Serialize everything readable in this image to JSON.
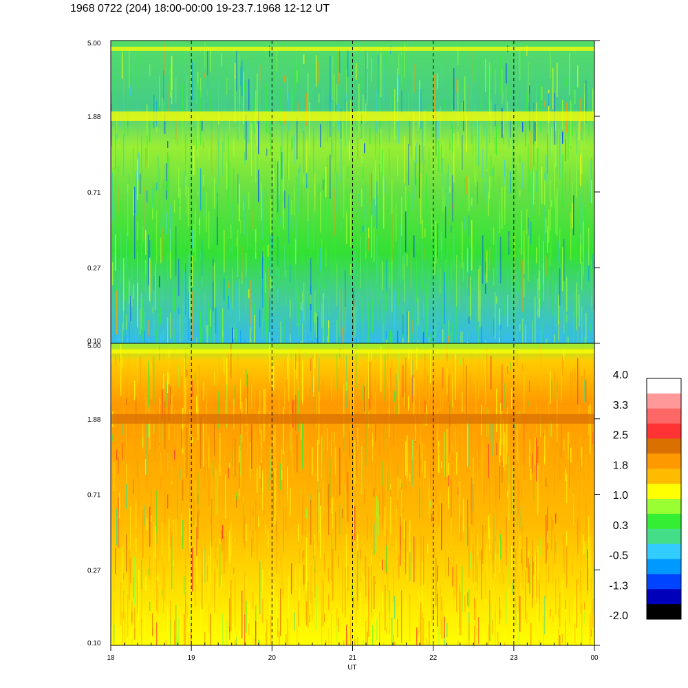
{
  "title": "1968 0722 (204) 18:00-00:00 19-23.7.1968  12-12 UT",
  "chart_data": {
    "type": "heatmap",
    "panels": [
      {
        "name": "upper",
        "y_ticks": [
          "5.00",
          "1.88",
          "0.71",
          "0.27",
          "0.10"
        ],
        "dominant_levels": [
          "0.3",
          "1.0"
        ],
        "bands": [
          {
            "y_value": 4.5,
            "level": 1.0
          },
          {
            "y_value": 1.88,
            "level": 1.0
          }
        ]
      },
      {
        "name": "lower",
        "y_ticks": [
          "5.00",
          "1.88",
          "0.71",
          "0.27",
          "0.10"
        ],
        "dominant_levels": [
          "1.0",
          "1.8"
        ],
        "bands": [
          {
            "y_value": 4.5,
            "level": 1.0
          },
          {
            "y_value": 1.88,
            "level": 2.5
          }
        ]
      }
    ],
    "x_ticks": [
      "18",
      "19",
      "20",
      "21",
      "22",
      "23",
      "00"
    ],
    "dashed_gridlines_at": [
      "19",
      "20",
      "21",
      "22",
      "23"
    ],
    "xlabel": "UT",
    "colorbar": {
      "labels": [
        "4.0",
        "3.3",
        "2.5",
        "1.8",
        "1.0",
        "0.3",
        "-0.5",
        "-1.3",
        "-2.0"
      ],
      "colors": [
        "#ffffff",
        "#ff9999",
        "#ff6666",
        "#ff3333",
        "#d97000",
        "#ff9900",
        "#ffbb00",
        "#ffff00",
        "#99ff33",
        "#33ee33",
        "#44dd88",
        "#33ccff",
        "#0099ff",
        "#0044ff",
        "#0000bb",
        "#000000"
      ]
    }
  }
}
